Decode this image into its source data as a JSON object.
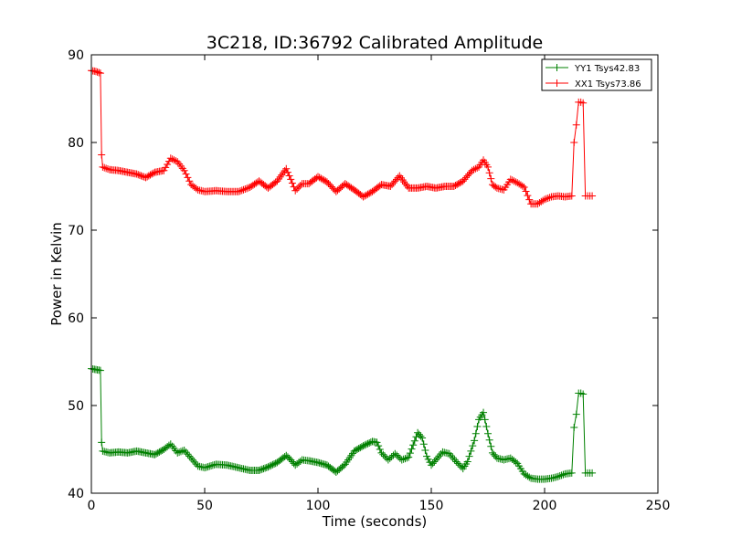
{
  "chart_data": {
    "type": "line",
    "title": "3C218, ID:36792 Calibrated Amplitude",
    "xlabel": "Time (seconds)",
    "ylabel": "Power in Kelvin",
    "xlim": [
      0,
      250
    ],
    "ylim": [
      40,
      90
    ],
    "xticks": [
      0,
      50,
      100,
      150,
      200,
      250
    ],
    "yticks": [
      40,
      50,
      60,
      70,
      80,
      90
    ],
    "grid": false,
    "legend_position": "top-right",
    "marker": "+",
    "series": [
      {
        "name": "YY1 Tsys42.83",
        "color": "#008000",
        "x": [
          0,
          2,
          4,
          4.5,
          5,
          8,
          12,
          16,
          20,
          24,
          28,
          32,
          35,
          38,
          41,
          44,
          47,
          50,
          55,
          60,
          65,
          70,
          74,
          78,
          82,
          86,
          88,
          90,
          93,
          96,
          100,
          104,
          108,
          112,
          116,
          120,
          124,
          126,
          128,
          131,
          134,
          137,
          140,
          144,
          146,
          148,
          150,
          152,
          155,
          158,
          161,
          164,
          166,
          169,
          171,
          173,
          175,
          177,
          179,
          182,
          185,
          188,
          191,
          194,
          197,
          200,
          203,
          206,
          209,
          212,
          213,
          214,
          215,
          216,
          217,
          218,
          219,
          220,
          221
        ],
        "y": [
          54.2,
          54.1,
          54.0,
          45.8,
          44.8,
          44.6,
          44.7,
          44.6,
          44.8,
          44.6,
          44.4,
          45.0,
          45.6,
          44.6,
          44.9,
          44.0,
          43.1,
          42.9,
          43.3,
          43.2,
          42.9,
          42.6,
          42.6,
          43.0,
          43.5,
          44.3,
          43.8,
          43.2,
          43.8,
          43.7,
          43.5,
          43.2,
          42.4,
          43.3,
          44.8,
          45.4,
          45.9,
          45.8,
          44.6,
          43.8,
          44.5,
          43.8,
          44.1,
          46.9,
          46.3,
          44.2,
          43.2,
          43.8,
          44.7,
          44.5,
          43.6,
          42.8,
          43.6,
          46.0,
          48.4,
          49.2,
          46.8,
          44.6,
          44.0,
          43.8,
          44.0,
          43.4,
          42.2,
          41.7,
          41.6,
          41.6,
          41.7,
          41.9,
          42.2,
          42.3,
          47.5,
          49.0,
          51.4,
          51.4,
          51.3,
          42.3,
          42.3,
          42.3,
          42.3
        ]
      },
      {
        "name": "XX1 Tsys73.86",
        "color": "#ff0000",
        "x": [
          0,
          2,
          4,
          4.5,
          5,
          8,
          12,
          16,
          20,
          24,
          28,
          32,
          35,
          38,
          41,
          44,
          47,
          50,
          55,
          60,
          65,
          70,
          74,
          78,
          82,
          86,
          88,
          90,
          93,
          96,
          100,
          104,
          108,
          112,
          116,
          120,
          124,
          128,
          132,
          136,
          140,
          144,
          148,
          152,
          156,
          160,
          164,
          168,
          171,
          173,
          175,
          177,
          179,
          182,
          185,
          188,
          191,
          194,
          197,
          200,
          203,
          206,
          209,
          212,
          213,
          214,
          215,
          216,
          217,
          218,
          219,
          220,
          221
        ],
        "y": [
          88.2,
          88.1,
          87.9,
          78.6,
          77.2,
          76.9,
          76.8,
          76.6,
          76.4,
          76.0,
          76.6,
          76.8,
          78.2,
          77.8,
          76.8,
          75.2,
          74.6,
          74.4,
          74.5,
          74.4,
          74.4,
          74.9,
          75.6,
          74.8,
          75.6,
          77.0,
          75.8,
          74.5,
          75.3,
          75.3,
          76.1,
          75.5,
          74.4,
          75.3,
          74.6,
          73.8,
          74.4,
          75.2,
          75.0,
          76.2,
          74.8,
          74.8,
          75.0,
          74.8,
          75.0,
          75.0,
          75.6,
          76.8,
          77.2,
          78.0,
          77.2,
          75.2,
          74.8,
          74.6,
          75.8,
          75.4,
          74.9,
          73.0,
          73.0,
          73.5,
          73.8,
          73.9,
          73.8,
          73.9,
          80.0,
          82.0,
          84.6,
          84.6,
          84.5,
          73.9,
          73.9,
          73.9,
          73.9
        ]
      }
    ]
  }
}
